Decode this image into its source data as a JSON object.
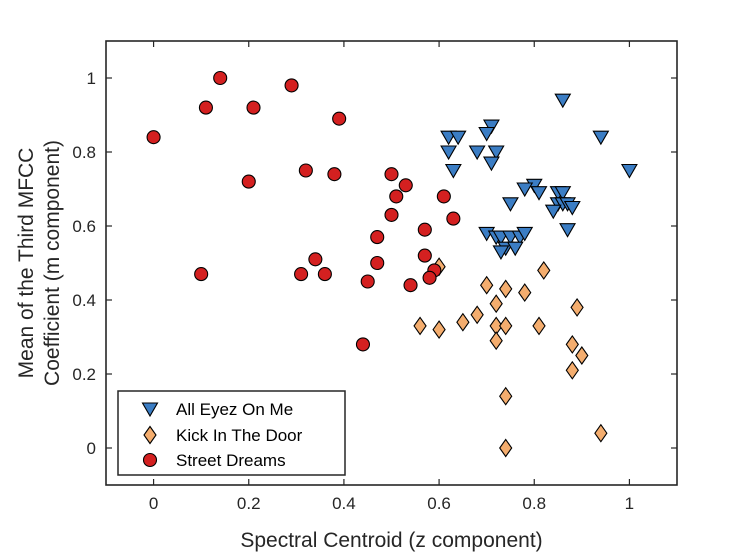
{
  "chart_data": {
    "type": "scatter",
    "xlabel": "Spectral Centroid (z component)",
    "ylabel_lines": [
      "Mean of the Third MFCC",
      "Coefficient (m component)"
    ],
    "xlim": [
      -0.1,
      1.1
    ],
    "ylim": [
      -0.1,
      1.1
    ],
    "xticks": [
      0,
      0.2,
      0.4,
      0.6,
      0.8,
      1
    ],
    "xtick_labels": [
      "0",
      "0.2",
      "0.4",
      "0.6",
      "0.8",
      "1"
    ],
    "yticks": [
      0,
      0.2,
      0.4,
      0.6,
      0.8,
      1
    ],
    "ytick_labels": [
      "0",
      "0.2",
      "0.4",
      "0.6",
      "0.8",
      "1"
    ],
    "grid": false,
    "legend_position": "bottom-left",
    "series": [
      {
        "name": "All Eyez On Me",
        "marker": "triangle-down",
        "color": "#3b7dc4",
        "points": [
          [
            0.86,
            0.94
          ],
          [
            0.71,
            0.87
          ],
          [
            0.7,
            0.85
          ],
          [
            0.94,
            0.84
          ],
          [
            0.62,
            0.84
          ],
          [
            0.64,
            0.84
          ],
          [
            0.62,
            0.8
          ],
          [
            0.68,
            0.8
          ],
          [
            0.72,
            0.8
          ],
          [
            0.71,
            0.77
          ],
          [
            1.0,
            0.75
          ],
          [
            0.63,
            0.75
          ],
          [
            0.8,
            0.71
          ],
          [
            0.78,
            0.7
          ],
          [
            0.81,
            0.69
          ],
          [
            0.85,
            0.69
          ],
          [
            0.86,
            0.69
          ],
          [
            0.85,
            0.66
          ],
          [
            0.86,
            0.66
          ],
          [
            0.87,
            0.66
          ],
          [
            0.88,
            0.65
          ],
          [
            0.84,
            0.64
          ],
          [
            0.75,
            0.66
          ],
          [
            0.87,
            0.59
          ],
          [
            0.7,
            0.58
          ],
          [
            0.72,
            0.57
          ],
          [
            0.73,
            0.57
          ],
          [
            0.75,
            0.57
          ],
          [
            0.77,
            0.57
          ],
          [
            0.78,
            0.58
          ],
          [
            0.74,
            0.54
          ],
          [
            0.76,
            0.54
          ],
          [
            0.73,
            0.53
          ]
        ]
      },
      {
        "name": "Kick In The Door",
        "marker": "diamond",
        "color": "#f4ad6e",
        "points": [
          [
            0.6,
            0.49
          ],
          [
            0.82,
            0.48
          ],
          [
            0.7,
            0.44
          ],
          [
            0.74,
            0.43
          ],
          [
            0.78,
            0.42
          ],
          [
            0.72,
            0.39
          ],
          [
            0.89,
            0.38
          ],
          [
            0.68,
            0.36
          ],
          [
            0.56,
            0.33
          ],
          [
            0.6,
            0.32
          ],
          [
            0.65,
            0.34
          ],
          [
            0.72,
            0.33
          ],
          [
            0.74,
            0.33
          ],
          [
            0.81,
            0.33
          ],
          [
            0.72,
            0.29
          ],
          [
            0.88,
            0.28
          ],
          [
            0.9,
            0.25
          ],
          [
            0.88,
            0.21
          ],
          [
            0.74,
            0.14
          ],
          [
            0.94,
            0.04
          ],
          [
            0.74,
            0.0
          ]
        ]
      },
      {
        "name": "Street Dreams",
        "marker": "circle",
        "color": "#d42020",
        "points": [
          [
            0.14,
            1.0
          ],
          [
            0.29,
            0.98
          ],
          [
            0.11,
            0.92
          ],
          [
            0.21,
            0.92
          ],
          [
            0.39,
            0.89
          ],
          [
            0.0,
            0.84
          ],
          [
            0.32,
            0.75
          ],
          [
            0.38,
            0.74
          ],
          [
            0.2,
            0.72
          ],
          [
            0.5,
            0.74
          ],
          [
            0.53,
            0.71
          ],
          [
            0.51,
            0.68
          ],
          [
            0.61,
            0.68
          ],
          [
            0.5,
            0.63
          ],
          [
            0.63,
            0.62
          ],
          [
            0.57,
            0.59
          ],
          [
            0.47,
            0.57
          ],
          [
            0.57,
            0.52
          ],
          [
            0.34,
            0.51
          ],
          [
            0.47,
            0.5
          ],
          [
            0.59,
            0.48
          ],
          [
            0.1,
            0.47
          ],
          [
            0.31,
            0.47
          ],
          [
            0.36,
            0.47
          ],
          [
            0.58,
            0.46
          ],
          [
            0.45,
            0.45
          ],
          [
            0.54,
            0.44
          ],
          [
            0.44,
            0.28
          ]
        ]
      }
    ]
  }
}
